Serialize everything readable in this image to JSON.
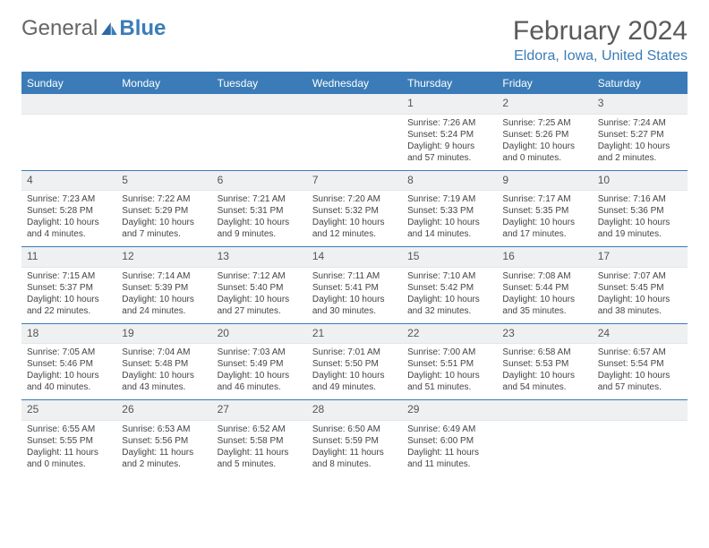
{
  "brand": {
    "part1": "General",
    "part2": "Blue"
  },
  "title": "February 2024",
  "location": "Eldora, Iowa, United States",
  "colors": {
    "accent": "#3b7cb8",
    "header_text": "#ffffff",
    "daynum_bg": "#eef0f2",
    "text": "#444444",
    "title_gray": "#5a5a5a"
  },
  "days_of_week": [
    "Sunday",
    "Monday",
    "Tuesday",
    "Wednesday",
    "Thursday",
    "Friday",
    "Saturday"
  ],
  "weeks": [
    [
      null,
      null,
      null,
      null,
      {
        "n": "1",
        "sunrise": "Sunrise: 7:26 AM",
        "sunset": "Sunset: 5:24 PM",
        "daylight": "Daylight: 9 hours and 57 minutes."
      },
      {
        "n": "2",
        "sunrise": "Sunrise: 7:25 AM",
        "sunset": "Sunset: 5:26 PM",
        "daylight": "Daylight: 10 hours and 0 minutes."
      },
      {
        "n": "3",
        "sunrise": "Sunrise: 7:24 AM",
        "sunset": "Sunset: 5:27 PM",
        "daylight": "Daylight: 10 hours and 2 minutes."
      }
    ],
    [
      {
        "n": "4",
        "sunrise": "Sunrise: 7:23 AM",
        "sunset": "Sunset: 5:28 PM",
        "daylight": "Daylight: 10 hours and 4 minutes."
      },
      {
        "n": "5",
        "sunrise": "Sunrise: 7:22 AM",
        "sunset": "Sunset: 5:29 PM",
        "daylight": "Daylight: 10 hours and 7 minutes."
      },
      {
        "n": "6",
        "sunrise": "Sunrise: 7:21 AM",
        "sunset": "Sunset: 5:31 PM",
        "daylight": "Daylight: 10 hours and 9 minutes."
      },
      {
        "n": "7",
        "sunrise": "Sunrise: 7:20 AM",
        "sunset": "Sunset: 5:32 PM",
        "daylight": "Daylight: 10 hours and 12 minutes."
      },
      {
        "n": "8",
        "sunrise": "Sunrise: 7:19 AM",
        "sunset": "Sunset: 5:33 PM",
        "daylight": "Daylight: 10 hours and 14 minutes."
      },
      {
        "n": "9",
        "sunrise": "Sunrise: 7:17 AM",
        "sunset": "Sunset: 5:35 PM",
        "daylight": "Daylight: 10 hours and 17 minutes."
      },
      {
        "n": "10",
        "sunrise": "Sunrise: 7:16 AM",
        "sunset": "Sunset: 5:36 PM",
        "daylight": "Daylight: 10 hours and 19 minutes."
      }
    ],
    [
      {
        "n": "11",
        "sunrise": "Sunrise: 7:15 AM",
        "sunset": "Sunset: 5:37 PM",
        "daylight": "Daylight: 10 hours and 22 minutes."
      },
      {
        "n": "12",
        "sunrise": "Sunrise: 7:14 AM",
        "sunset": "Sunset: 5:39 PM",
        "daylight": "Daylight: 10 hours and 24 minutes."
      },
      {
        "n": "13",
        "sunrise": "Sunrise: 7:12 AM",
        "sunset": "Sunset: 5:40 PM",
        "daylight": "Daylight: 10 hours and 27 minutes."
      },
      {
        "n": "14",
        "sunrise": "Sunrise: 7:11 AM",
        "sunset": "Sunset: 5:41 PM",
        "daylight": "Daylight: 10 hours and 30 minutes."
      },
      {
        "n": "15",
        "sunrise": "Sunrise: 7:10 AM",
        "sunset": "Sunset: 5:42 PM",
        "daylight": "Daylight: 10 hours and 32 minutes."
      },
      {
        "n": "16",
        "sunrise": "Sunrise: 7:08 AM",
        "sunset": "Sunset: 5:44 PM",
        "daylight": "Daylight: 10 hours and 35 minutes."
      },
      {
        "n": "17",
        "sunrise": "Sunrise: 7:07 AM",
        "sunset": "Sunset: 5:45 PM",
        "daylight": "Daylight: 10 hours and 38 minutes."
      }
    ],
    [
      {
        "n": "18",
        "sunrise": "Sunrise: 7:05 AM",
        "sunset": "Sunset: 5:46 PM",
        "daylight": "Daylight: 10 hours and 40 minutes."
      },
      {
        "n": "19",
        "sunrise": "Sunrise: 7:04 AM",
        "sunset": "Sunset: 5:48 PM",
        "daylight": "Daylight: 10 hours and 43 minutes."
      },
      {
        "n": "20",
        "sunrise": "Sunrise: 7:03 AM",
        "sunset": "Sunset: 5:49 PM",
        "daylight": "Daylight: 10 hours and 46 minutes."
      },
      {
        "n": "21",
        "sunrise": "Sunrise: 7:01 AM",
        "sunset": "Sunset: 5:50 PM",
        "daylight": "Daylight: 10 hours and 49 minutes."
      },
      {
        "n": "22",
        "sunrise": "Sunrise: 7:00 AM",
        "sunset": "Sunset: 5:51 PM",
        "daylight": "Daylight: 10 hours and 51 minutes."
      },
      {
        "n": "23",
        "sunrise": "Sunrise: 6:58 AM",
        "sunset": "Sunset: 5:53 PM",
        "daylight": "Daylight: 10 hours and 54 minutes."
      },
      {
        "n": "24",
        "sunrise": "Sunrise: 6:57 AM",
        "sunset": "Sunset: 5:54 PM",
        "daylight": "Daylight: 10 hours and 57 minutes."
      }
    ],
    [
      {
        "n": "25",
        "sunrise": "Sunrise: 6:55 AM",
        "sunset": "Sunset: 5:55 PM",
        "daylight": "Daylight: 11 hours and 0 minutes."
      },
      {
        "n": "26",
        "sunrise": "Sunrise: 6:53 AM",
        "sunset": "Sunset: 5:56 PM",
        "daylight": "Daylight: 11 hours and 2 minutes."
      },
      {
        "n": "27",
        "sunrise": "Sunrise: 6:52 AM",
        "sunset": "Sunset: 5:58 PM",
        "daylight": "Daylight: 11 hours and 5 minutes."
      },
      {
        "n": "28",
        "sunrise": "Sunrise: 6:50 AM",
        "sunset": "Sunset: 5:59 PM",
        "daylight": "Daylight: 11 hours and 8 minutes."
      },
      {
        "n": "29",
        "sunrise": "Sunrise: 6:49 AM",
        "sunset": "Sunset: 6:00 PM",
        "daylight": "Daylight: 11 hours and 11 minutes."
      },
      null,
      null
    ]
  ]
}
